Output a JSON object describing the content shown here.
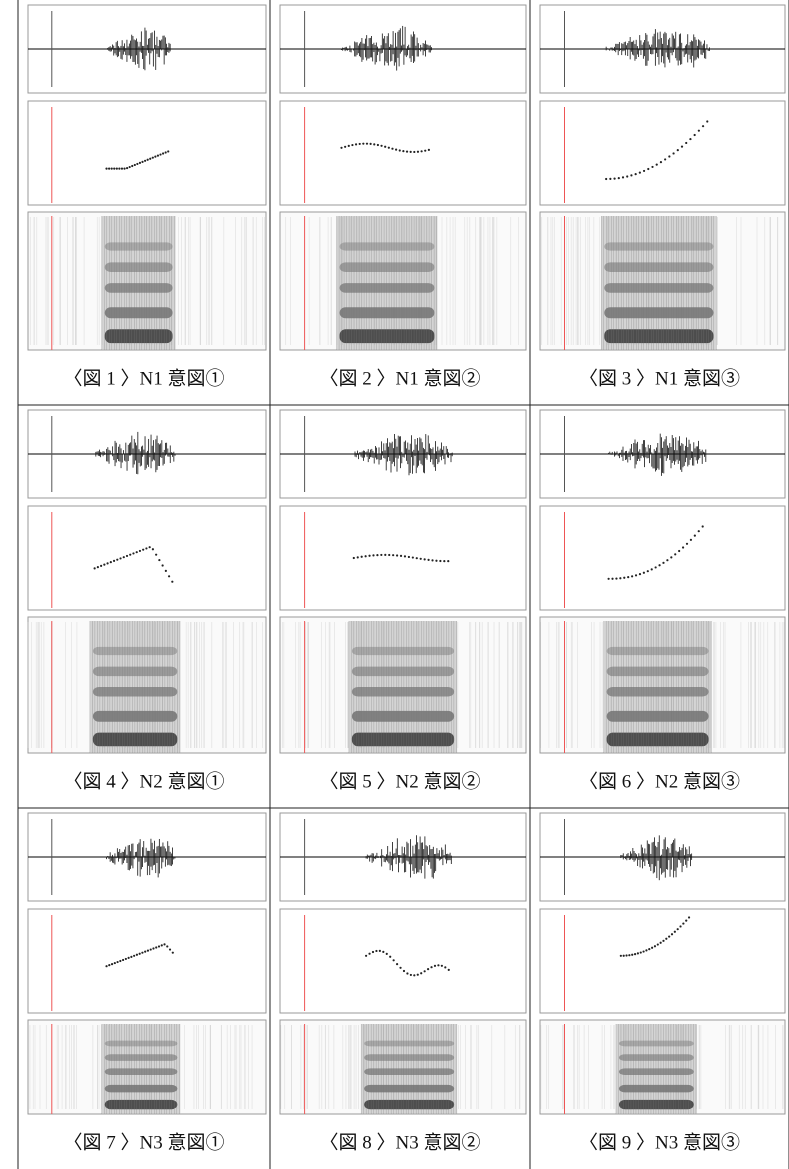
{
  "figures": [
    {
      "caption": "〈図 1 〉N1 意図①"
    },
    {
      "caption": "〈図 2 〉N1 意図②"
    },
    {
      "caption": "〈図 3 〉N1 意図③"
    },
    {
      "caption": "〈図 4 〉N2 意図①"
    },
    {
      "caption": "〈図 5 〉N2 意図②"
    },
    {
      "caption": "〈図 6 〉N2 意図③"
    },
    {
      "caption": "〈図 7 〉N3 意図①"
    },
    {
      "caption": "〈図 8 〉N3 意図②"
    },
    {
      "caption": "〈図 9 〉N3 意図③"
    }
  ]
}
